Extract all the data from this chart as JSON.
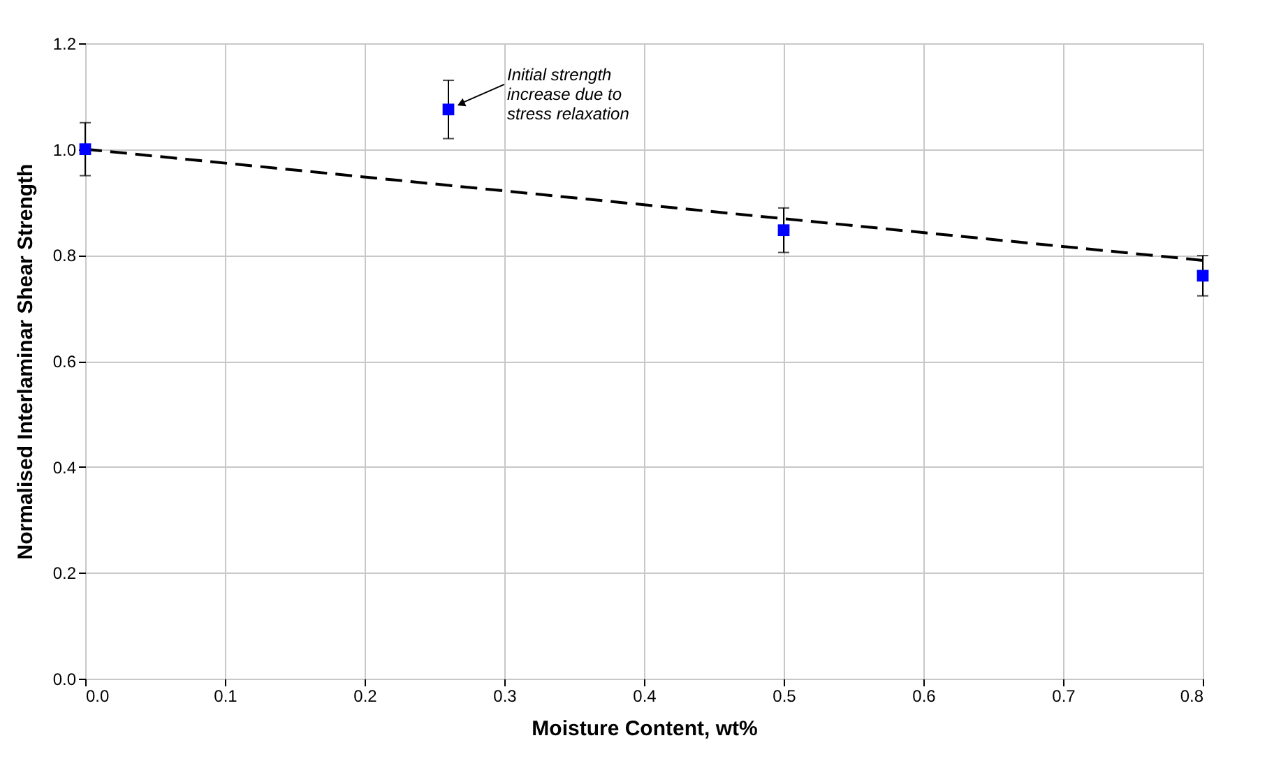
{
  "chart_data": {
    "type": "scatter",
    "xlabel": "Moisture Content, wt%",
    "ylabel": "Normalised Interlaminar Shear Strength",
    "xlim": [
      0,
      0.8
    ],
    "xticks": [
      {
        "value": 0,
        "label": "0.0"
      },
      0.1,
      0.2,
      0.3,
      0.4,
      0.5,
      0.6,
      0.7,
      0.8
    ],
    "ylim": [
      0,
      1.2
    ],
    "yticks": [
      {
        "value": 0,
        "label": "0.0"
      },
      0.2,
      0.4,
      0.6,
      0.8,
      {
        "value": 1,
        "label": "1.0"
      },
      1.2
    ],
    "grid": true,
    "series": [
      {
        "type": "scatter",
        "color": "#0000ff",
        "marker": "square",
        "x": [
          0,
          0.26,
          0.5,
          0.8
        ],
        "values": [
          1.0,
          1.075,
          0.847,
          0.761
        ],
        "errors": [
          0.05,
          0.055,
          0.042,
          0.038
        ]
      },
      {
        "type": "line",
        "color": "#000000",
        "line_style": "dashed",
        "marker": "none",
        "x": [
          0,
          0.8
        ],
        "values": [
          1.0,
          0.79
        ]
      }
    ],
    "annotations": [
      {
        "text": "Initial strength\nincrease due to\nstress relaxation",
        "x": 0.26,
        "y": 1.075
      }
    ]
  }
}
